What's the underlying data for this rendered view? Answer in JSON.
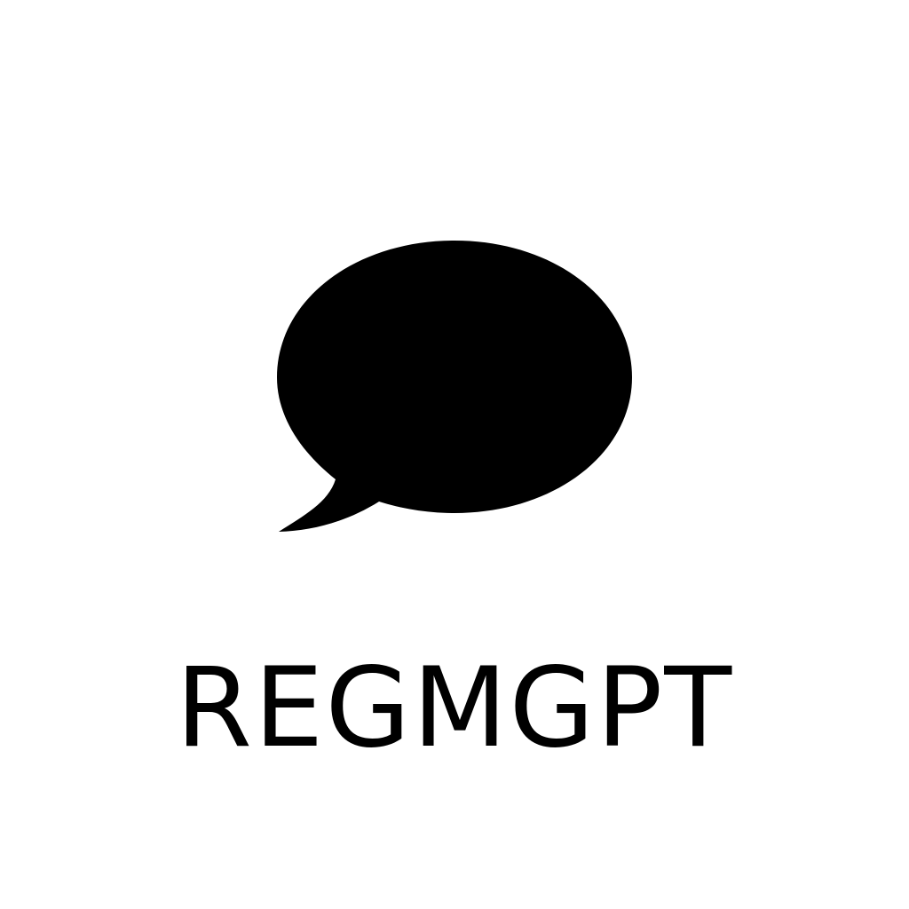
{
  "logo": {
    "name": "REGMGPT",
    "icon": "speech-bubble-icon"
  },
  "colors": {
    "background": "#ffffff",
    "foreground": "#000000"
  }
}
